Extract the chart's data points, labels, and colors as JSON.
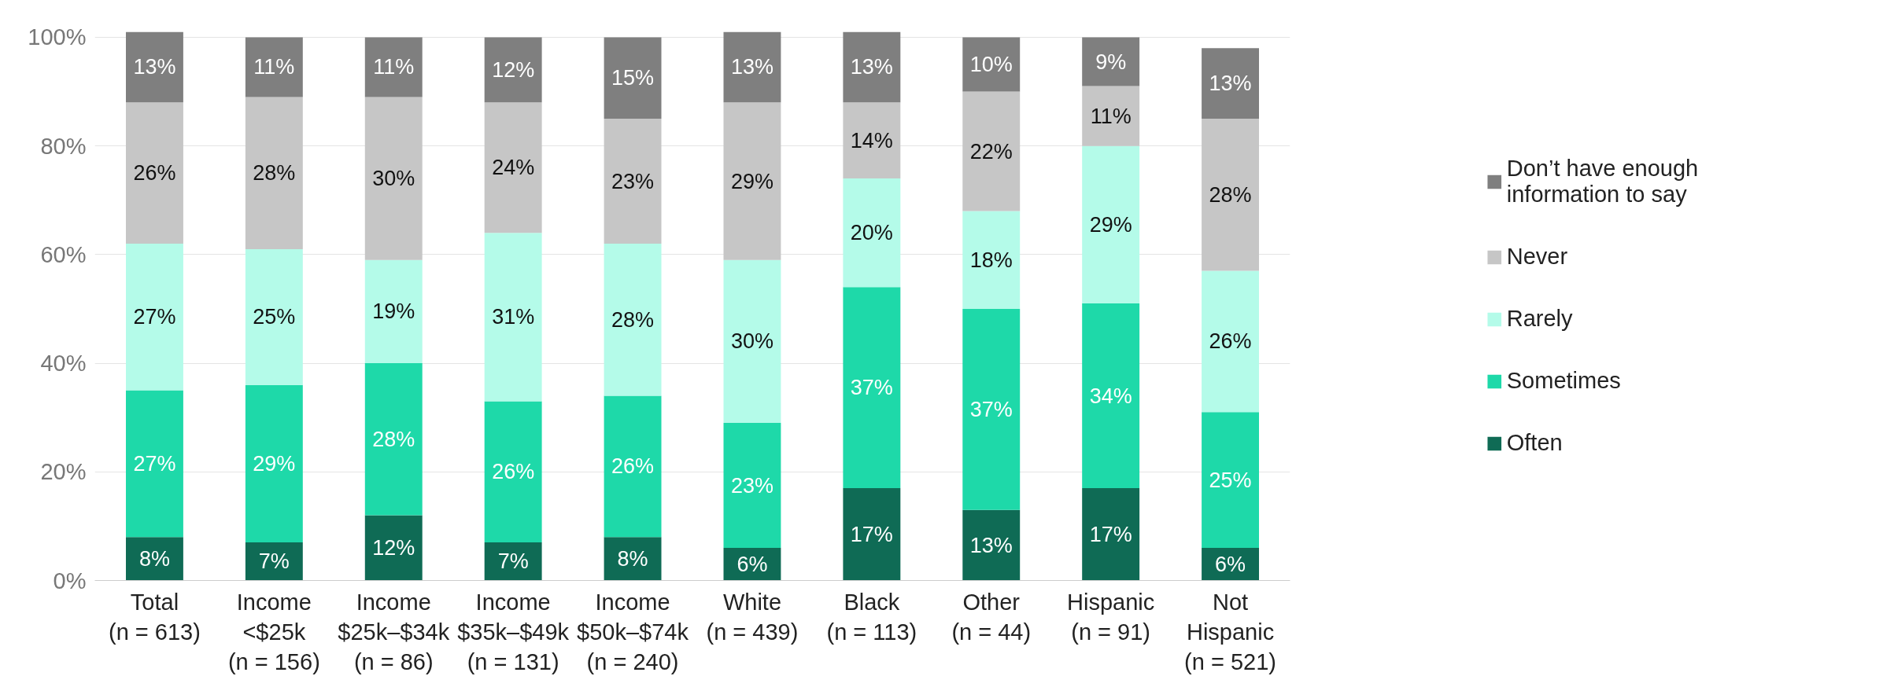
{
  "chart_data": {
    "type": "bar",
    "stacked": true,
    "grid": "y",
    "legend": "right",
    "categories": [
      "Total\n(n = 613)",
      "Income\n<$25k\n(n = 156)",
      "Income\n$25k–$34k\n(n = 86)",
      "Income\n$35k–$49k\n(n = 131)",
      "Income\n$50k–$74k\n(n = 240)",
      "White\n(n = 439)",
      "Black\n(n = 113)",
      "Other\n(n = 44)",
      "Hispanic\n(n = 91)",
      "Not\nHispanic\n(n = 521)"
    ],
    "ylim": [
      0,
      101
    ],
    "yticks": [
      {
        "value": 0,
        "label": "0%"
      },
      {
        "value": 20,
        "label": "20%"
      },
      {
        "value": 40,
        "label": "40%"
      },
      {
        "value": 60,
        "label": "60%"
      },
      {
        "value": 80,
        "label": "80%"
      },
      {
        "value": 100,
        "label": "100%"
      }
    ],
    "series": [
      {
        "name": "Often",
        "color": "#0f6b55",
        "values": [
          8,
          7,
          12,
          7,
          8,
          6,
          17,
          13,
          17,
          6
        ],
        "value_labels": [
          "8%",
          "7%",
          "12%",
          "7%",
          "8%",
          "6%",
          "17%",
          "13%",
          "17%",
          "6%"
        ]
      },
      {
        "name": "Sometimes",
        "color": "#1ed9a9",
        "values": [
          27,
          29,
          28,
          26,
          26,
          23,
          37,
          37,
          34,
          25
        ],
        "value_labels": [
          "27%",
          "29%",
          "28%",
          "26%",
          "26%",
          "23%",
          "37%",
          "37%",
          "34%",
          "25%"
        ]
      },
      {
        "name": "Rarely",
        "color": "#b4fbe9",
        "values": [
          27,
          25,
          19,
          31,
          28,
          30,
          20,
          18,
          29,
          26
        ],
        "value_labels": [
          "27%",
          "25%",
          "19%",
          "31%",
          "28%",
          "30%",
          "20%",
          "18%",
          "29%",
          "26%"
        ]
      },
      {
        "name": "Never",
        "color": "#c6c6c6",
        "values": [
          26,
          28,
          30,
          24,
          23,
          29,
          14,
          22,
          11,
          28
        ],
        "value_labels": [
          "26%",
          "28%",
          "30%",
          "24%",
          "23%",
          "29%",
          "14%",
          "22%",
          "11%",
          "28%"
        ]
      },
      {
        "name": "Don’t have enough information to say",
        "color": "#7f7f7f",
        "values": [
          13,
          11,
          11,
          12,
          15,
          13,
          13,
          10,
          9,
          13
        ],
        "value_labels": [
          "13%",
          "11%",
          "11%",
          "12%",
          "15%",
          "13%",
          "13%",
          "10%",
          "9%",
          "13%"
        ]
      }
    ]
  }
}
